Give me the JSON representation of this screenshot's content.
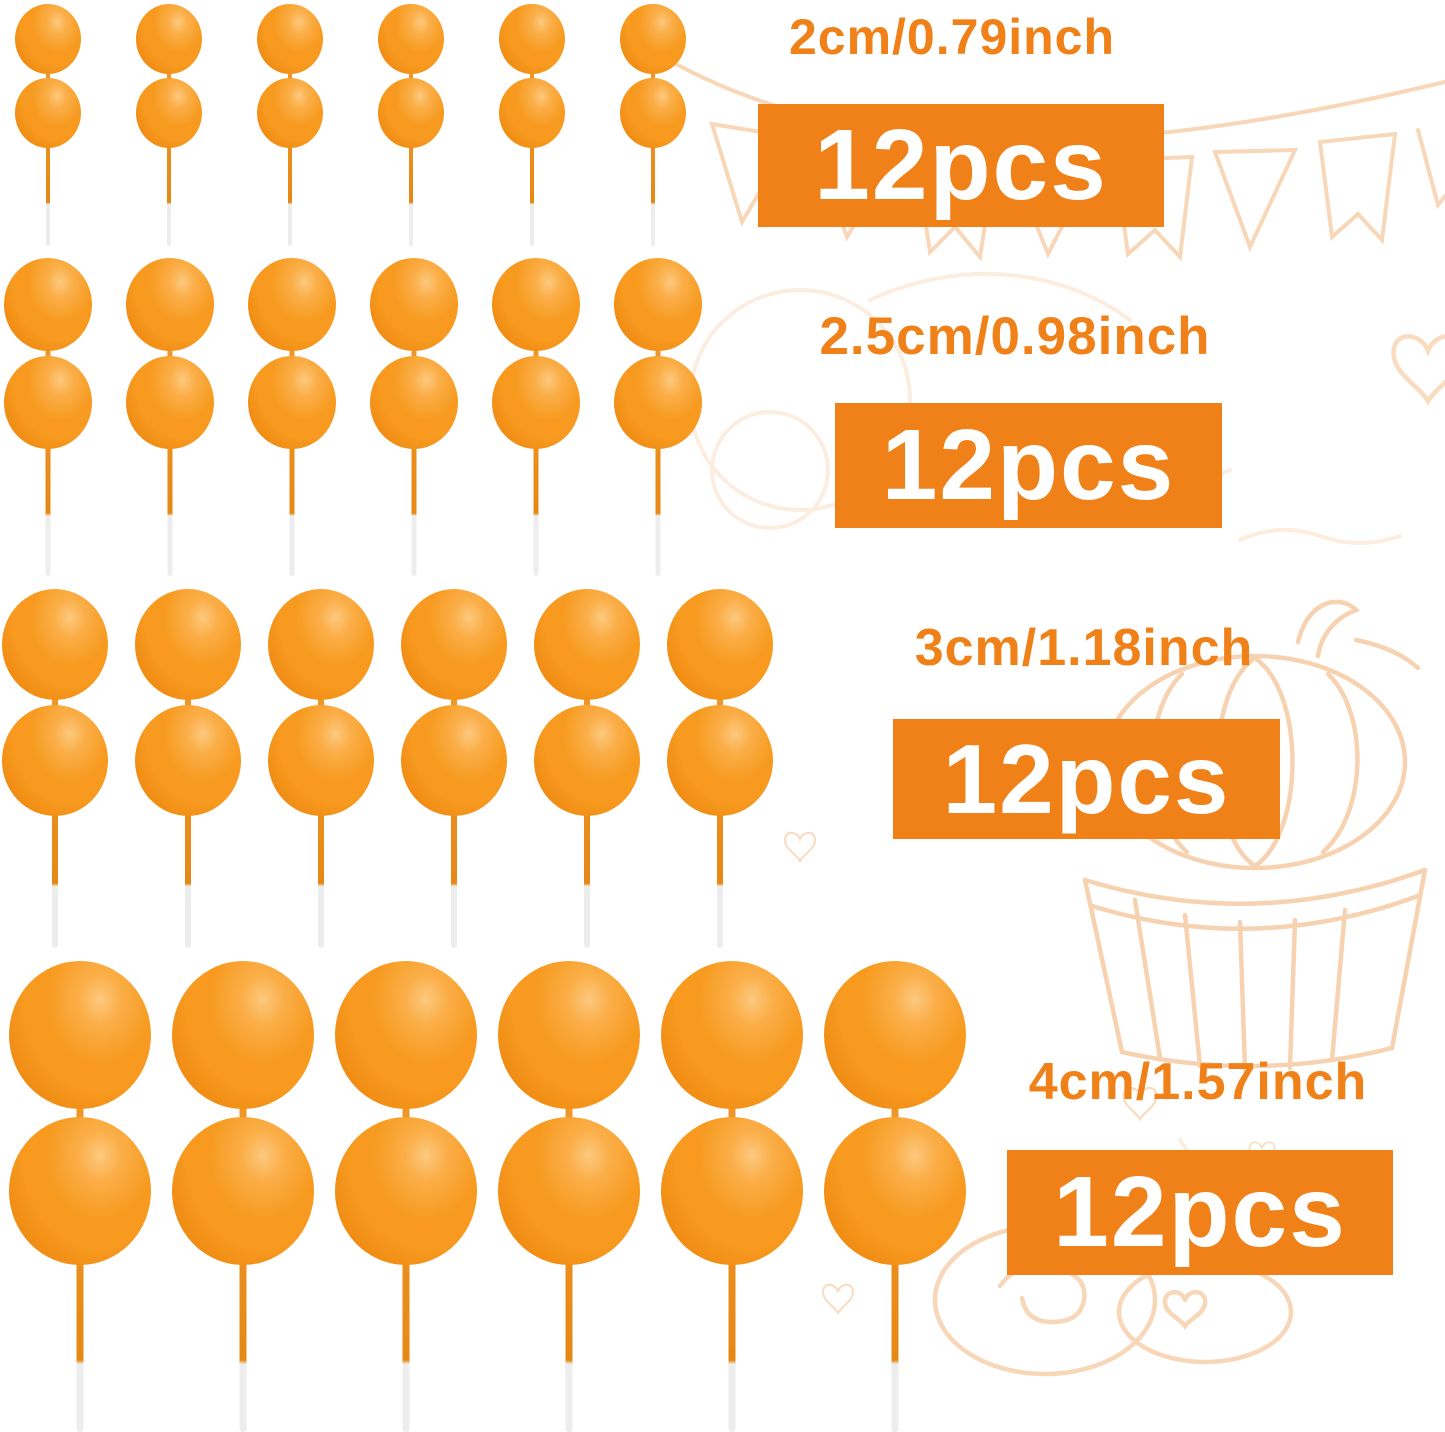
{
  "product": {
    "description": "orange ball cake topper picks",
    "balls_per_pick": 2,
    "variants": [
      {
        "size_label": "2cm/0.79inch",
        "count_label": "12pcs",
        "picks_shown": 6
      },
      {
        "size_label": "2.5cm/0.98inch",
        "count_label": "12pcs",
        "picks_shown": 6
      },
      {
        "size_label": "3cm/1.18inch",
        "count_label": "12pcs",
        "picks_shown": 6
      },
      {
        "size_label": "4cm/1.57inch",
        "count_label": "12pcs",
        "picks_shown": 6
      }
    ]
  },
  "colors": {
    "accent": "#F08119",
    "ball_main": "#F79A1F",
    "stick": "#F29B2E",
    "stick_dark": "#E68815",
    "stick_tip": "#EDEDED",
    "doodle": "#F0A763",
    "badge_text": "#FFFFFF"
  },
  "background_doodles": [
    "bunting-banner",
    "hearts",
    "pumpkin-cupcake",
    "donuts",
    "sketch-scribbles"
  ]
}
